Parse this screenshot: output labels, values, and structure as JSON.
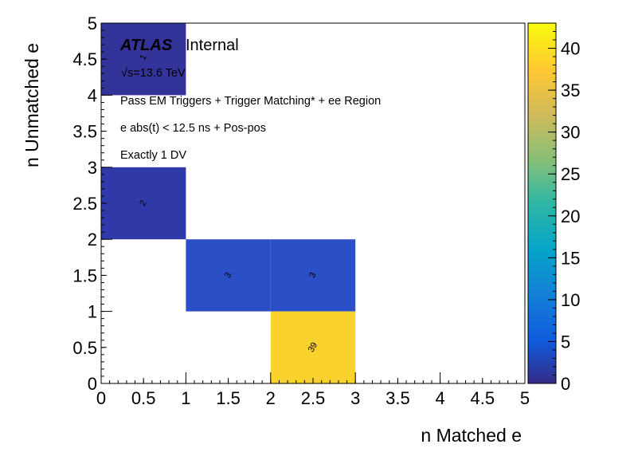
{
  "chart_data": {
    "type": "heatmap",
    "xlabel": "n Matched e",
    "ylabel": "n Unmatched e",
    "xlim": [
      0,
      5
    ],
    "ylim": [
      0,
      5
    ],
    "x_ticks": [
      "0",
      "0.5",
      "1",
      "1.5",
      "2",
      "2.5",
      "3",
      "3.5",
      "4",
      "4.5",
      "5"
    ],
    "y_ticks": [
      "0",
      "0.5",
      "1",
      "1.5",
      "2",
      "2.5",
      "3",
      "3.5",
      "4",
      "4.5",
      "5"
    ],
    "z_range": [
      0,
      43
    ],
    "z_ticks": [
      "0",
      "5",
      "10",
      "15",
      "20",
      "25",
      "30",
      "35",
      "40"
    ],
    "cells": [
      {
        "x0": 0,
        "x1": 1,
        "y0": 4,
        "y1": 5,
        "value": 1,
        "label": "1"
      },
      {
        "x0": 0,
        "x1": 1,
        "y0": 2,
        "y1": 3,
        "value": 2,
        "label": "2"
      },
      {
        "x0": 1,
        "x1": 2,
        "y0": 1,
        "y1": 2,
        "value": 3,
        "label": "3"
      },
      {
        "x0": 2,
        "x1": 3,
        "y0": 1,
        "y1": 2,
        "value": 3,
        "label": "3"
      },
      {
        "x0": 2,
        "x1": 3,
        "y0": 0,
        "y1": 1,
        "value": 39,
        "label": "39"
      }
    ]
  },
  "annotations": {
    "atlas": "ATLAS",
    "internal": "Internal",
    "energy": "√s=13.6 TeV",
    "line1": "Pass EM Triggers + Trigger Matching* + ee Region",
    "line2": "e abs(t) < 12.5 ns + Pos-pos",
    "line3": "Exactly 1 DV"
  },
  "colors": {
    "low": "#352a87",
    "high": "#f9fb0e",
    "cell_39": "#f9d22e",
    "cell_3": "#2a4fc6",
    "cell_2": "#3039a8",
    "cell_1": "#333399"
  }
}
